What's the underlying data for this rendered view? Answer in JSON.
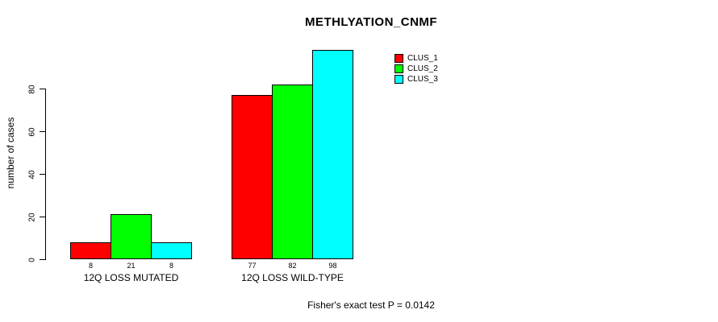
{
  "title": "METHLYATION_CNMF",
  "footer": "Fisher's exact test P = 0.0142",
  "y_axis_label": "number of cases",
  "chart_data": {
    "type": "bar",
    "title": "METHLYATION_CNMF",
    "xlabel": "",
    "ylabel": "number of cases",
    "categories": [
      "12Q LOSS MUTATED",
      "12Q LOSS WILD-TYPE"
    ],
    "series": [
      {
        "name": "CLUS_1",
        "color": "#ff0000",
        "values": [
          8,
          77
        ]
      },
      {
        "name": "CLUS_2",
        "color": "#00ff00",
        "values": [
          21,
          82
        ]
      },
      {
        "name": "CLUS_3",
        "color": "#00ffff",
        "values": [
          8,
          98
        ]
      }
    ],
    "bar_value_labels": [
      [
        "8",
        "21",
        "8"
      ],
      [
        "77",
        "82",
        "98"
      ]
    ],
    "yticks": [
      0,
      20,
      40,
      60,
      80
    ],
    "ylim": [
      0,
      98
    ],
    "grid": false,
    "legend_position": "top-right",
    "bar_border_color": "#000000",
    "annotation": "Fisher's exact test P = 0.0142"
  }
}
